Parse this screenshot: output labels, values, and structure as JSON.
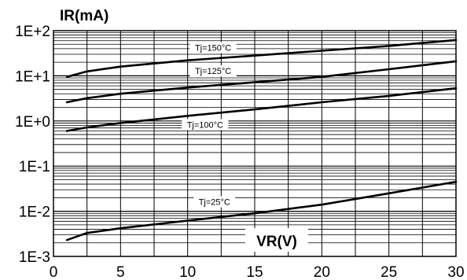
{
  "chart_data": {
    "type": "line",
    "title": "",
    "ylabel": "IR(mA)",
    "xlabel": "VR(V)",
    "yscale": "log",
    "xlim": [
      0,
      30
    ],
    "ylim": [
      0.001,
      100
    ],
    "grid": true,
    "x_ticks": [
      0,
      5,
      10,
      15,
      20,
      25,
      30
    ],
    "x_tick_labels": [
      "0",
      "5",
      "10",
      "15",
      "20",
      "25",
      "30"
    ],
    "y_ticks": [
      0.001,
      0.01,
      0.1,
      1,
      10,
      100
    ],
    "y_tick_labels": [
      "1E-3",
      "1E-2",
      "1E-1",
      "1E+0",
      "1E+1",
      "1E+2"
    ],
    "series": [
      {
        "name": "Tj=150°C",
        "x": [
          1,
          2.5,
          5,
          10,
          15,
          20,
          25,
          30
        ],
        "y": [
          9.5,
          12.5,
          16,
          22,
          28,
          36,
          46,
          62
        ]
      },
      {
        "name": "Tj=125°C",
        "x": [
          1,
          2.5,
          5,
          10,
          15,
          20,
          25,
          30
        ],
        "y": [
          2.6,
          3.2,
          4.0,
          5.5,
          7.2,
          9.5,
          14,
          21
        ]
      },
      {
        "name": "Tj=100°C",
        "x": [
          1,
          2.5,
          5,
          10,
          15,
          20,
          25,
          30
        ],
        "y": [
          0.6,
          0.72,
          0.9,
          1.3,
          1.8,
          2.6,
          3.6,
          5.3
        ]
      },
      {
        "name": "Tj=25°C",
        "x": [
          1,
          2.5,
          5,
          10,
          15,
          20,
          25,
          30
        ],
        "y": [
          0.0023,
          0.0033,
          0.0042,
          0.0062,
          0.009,
          0.014,
          0.025,
          0.045
        ]
      }
    ]
  }
}
